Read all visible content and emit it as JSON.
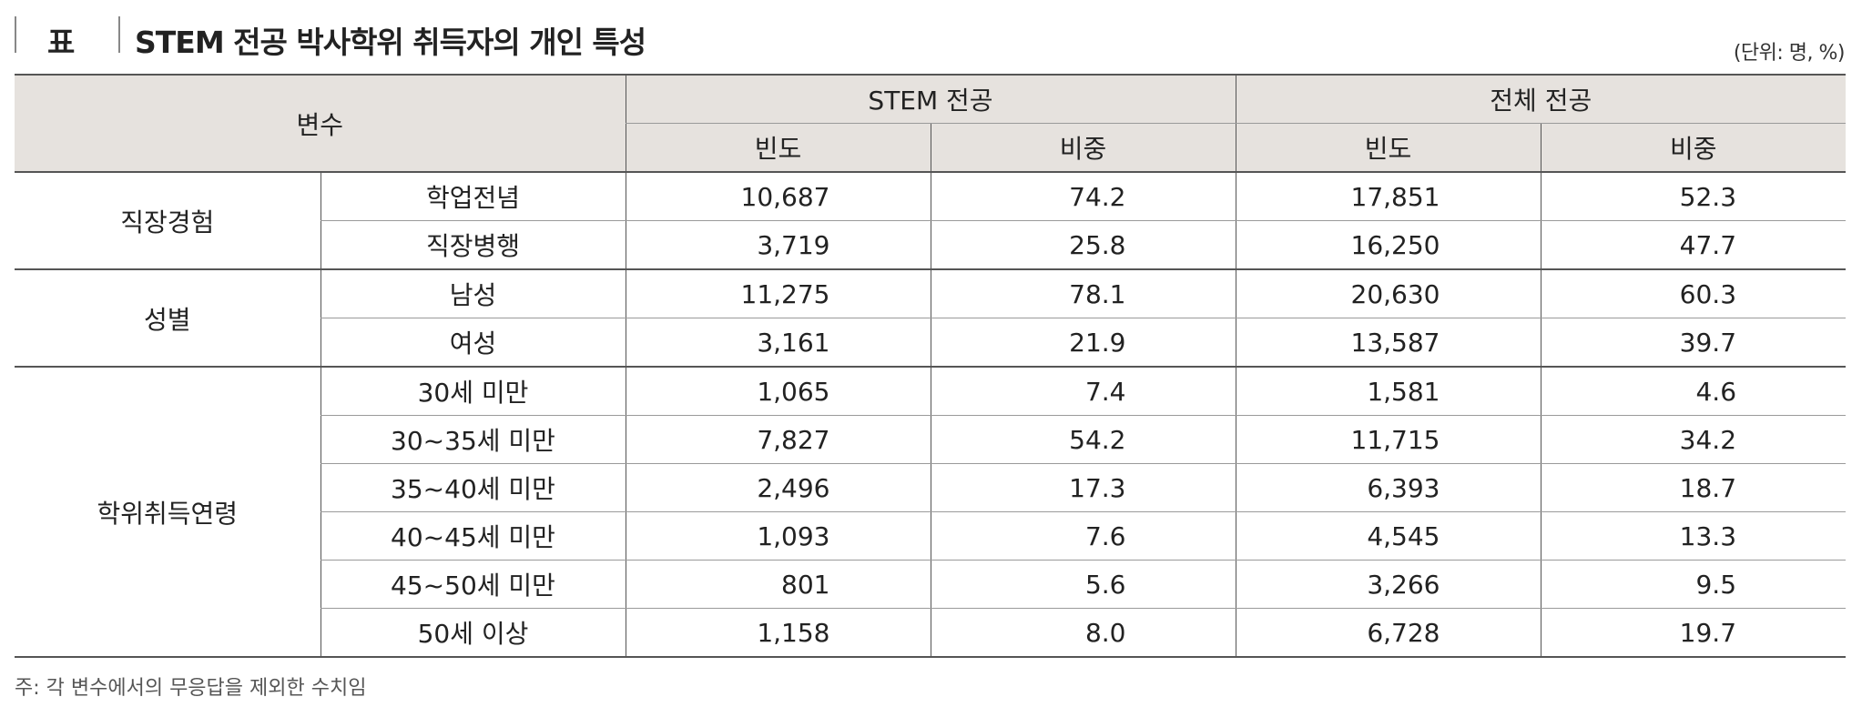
{
  "header": {
    "label": "표",
    "title": "STEM 전공 박사학위 취득자의 개인 특성",
    "unit": "(단위: 명, %)"
  },
  "table": {
    "col_variable": "변수",
    "group_stem": "STEM 전공",
    "group_all": "전체 전공",
    "sub_freq": "빈도",
    "sub_pct": "비중",
    "groups": [
      {
        "name": "직장경험",
        "rows": [
          {
            "label": "학업전념",
            "stem_freq": "10,687",
            "stem_pct": "74.2",
            "all_freq": "17,851",
            "all_pct": "52.3"
          },
          {
            "label": "직장병행",
            "stem_freq": "3,719",
            "stem_pct": "25.8",
            "all_freq": "16,250",
            "all_pct": "47.7"
          }
        ]
      },
      {
        "name": "성별",
        "rows": [
          {
            "label": "남성",
            "stem_freq": "11,275",
            "stem_pct": "78.1",
            "all_freq": "20,630",
            "all_pct": "60.3"
          },
          {
            "label": "여성",
            "stem_freq": "3,161",
            "stem_pct": "21.9",
            "all_freq": "13,587",
            "all_pct": "39.7"
          }
        ]
      },
      {
        "name": "학위취득연령",
        "rows": [
          {
            "label": "30세 미만",
            "stem_freq": "1,065",
            "stem_pct": "7.4",
            "all_freq": "1,581",
            "all_pct": "4.6"
          },
          {
            "label": "30~35세 미만",
            "stem_freq": "7,827",
            "stem_pct": "54.2",
            "all_freq": "11,715",
            "all_pct": "34.2"
          },
          {
            "label": "35~40세 미만",
            "stem_freq": "2,496",
            "stem_pct": "17.3",
            "all_freq": "6,393",
            "all_pct": "18.7"
          },
          {
            "label": "40~45세 미만",
            "stem_freq": "1,093",
            "stem_pct": "7.6",
            "all_freq": "4,545",
            "all_pct": "13.3"
          },
          {
            "label": "45~50세 미만",
            "stem_freq": "801",
            "stem_pct": "5.6",
            "all_freq": "3,266",
            "all_pct": "9.5"
          },
          {
            "label": "50세 이상",
            "stem_freq": "1,158",
            "stem_pct": "8.0",
            "all_freq": "6,728",
            "all_pct": "19.7"
          }
        ]
      }
    ]
  },
  "note": "주: 각 변수에서의 무응답을 제외한 수치임",
  "colors": {
    "header_bg": "#e6e2de",
    "rule": "#555555"
  }
}
